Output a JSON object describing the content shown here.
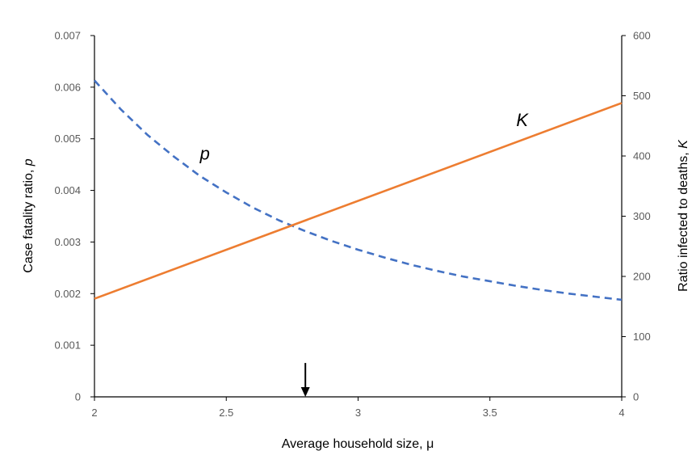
{
  "chart_data": {
    "type": "line",
    "x_axis": {
      "label_prefix": "Average household size, ",
      "label_symbol": "μ",
      "range": [
        2,
        4
      ],
      "ticks": [
        "2",
        "2.5",
        "3",
        "3.5",
        "4"
      ],
      "tick_values": [
        2,
        2.5,
        3,
        3.5,
        4
      ]
    },
    "y_left": {
      "label_prefix": "Case fatality ratio, ",
      "label_symbol": "p",
      "range": [
        0,
        0.007
      ],
      "ticks": [
        "0",
        "0.001",
        "0.002",
        "0.003",
        "0.004",
        "0.005",
        "0.006",
        "0.007"
      ],
      "tick_values": [
        0,
        0.001,
        0.002,
        0.003,
        0.004,
        0.005,
        0.006,
        0.007
      ]
    },
    "y_right": {
      "label_prefix": "Ratio infected to deaths, ",
      "label_symbol": "K",
      "range": [
        0,
        600
      ],
      "ticks": [
        "0",
        "100",
        "200",
        "300",
        "400",
        "500",
        "600"
      ],
      "tick_values": [
        0,
        100,
        200,
        300,
        400,
        500,
        600
      ]
    },
    "series": [
      {
        "name": "p",
        "axis": "left",
        "color": "#4472C4",
        "style": "dashed",
        "x": [
          2.0,
          2.1,
          2.2,
          2.3,
          2.4,
          2.5,
          2.6,
          2.7,
          2.8,
          2.9,
          3.0,
          3.1,
          3.2,
          3.3,
          3.4,
          3.5,
          3.6,
          3.7,
          3.8,
          3.9,
          4.0
        ],
        "y": [
          0.00613,
          0.00557,
          0.00508,
          0.00466,
          0.00428,
          0.00396,
          0.00367,
          0.00342,
          0.00321,
          0.00302,
          0.00285,
          0.0027,
          0.00256,
          0.00244,
          0.00233,
          0.00224,
          0.00215,
          0.00207,
          0.002,
          0.00194,
          0.00188
        ]
      },
      {
        "name": "K",
        "axis": "right",
        "color": "#ED7D31",
        "style": "solid",
        "x": [
          2.0,
          4.0
        ],
        "y": [
          163,
          488
        ]
      }
    ],
    "annotations": [
      {
        "text": "p",
        "x": 2.4,
        "y_left": 0.0046
      },
      {
        "text": "K",
        "x": 3.6,
        "y_right": 450
      }
    ],
    "marker_arrow": {
      "x": 2.8,
      "from_y_left": 0.0005,
      "to_y_left": 0.0
    },
    "grid": false,
    "legend": "none"
  }
}
